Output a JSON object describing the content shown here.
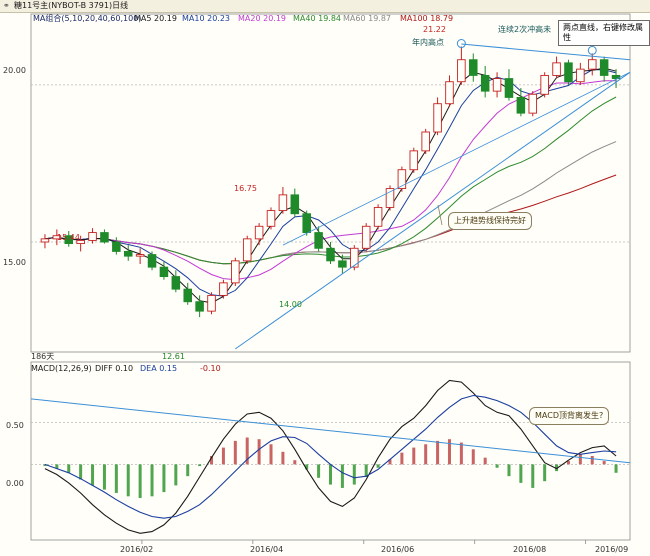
{
  "title": {
    "icon": "chart-icon",
    "text": "糖11号主(NYBOT-B 3791)日线"
  },
  "ma_legend": {
    "group": "MA组合(5,10,20,40,60,100)",
    "items": [
      {
        "label": "MA5 20.19",
        "color": "#1a1a1a"
      },
      {
        "label": "MA10 20.23",
        "color": "#1c3fa0"
      },
      {
        "label": "MA20 20.19",
        "color": "#c23bd4"
      },
      {
        "label": "MA40 19.84",
        "color": "#2e8b2e"
      },
      {
        "label": "MA60 19.87",
        "color": "#8a8a8a"
      },
      {
        "label": "MA100 18.79",
        "color": "#b01818"
      }
    ]
  },
  "tooltip": "两点直线，右键修改属性",
  "annotations": {
    "high_value": "21.22",
    "year_high": "年内高点",
    "new_high": "连续2次冲高未",
    "uptrend": "上升趋势线保持完好",
    "macd_divergence": "MACD顶背离发生?"
  },
  "price_labels": {
    "p1544": "15.44",
    "p1675": "16.75",
    "p1400": "14.00",
    "p1261": "12.61"
  },
  "bar_count": "186天",
  "macd_legend": {
    "name": "MACD(12,26,9)",
    "diff": "DIFF  0.10",
    "dea": "DEA  0.15",
    "macd": "-0.10"
  },
  "chart_data": [
    {
      "type": "candlestick",
      "title": "糖11号主(NYBOT-B 3791)日线",
      "y_ticks": [
        "20.00",
        "15.00"
      ],
      "ylim": [
        11.5,
        22.0
      ],
      "x_ticks": [
        "2016/02",
        "2016/04",
        "2016/06",
        "2016/08",
        "2016/09"
      ],
      "colors": {
        "up": "#c62222",
        "down": "#1f8a2a"
      },
      "series": [
        {
          "ohlc": [
            [
              15.0,
              15.25,
              14.8,
              15.1
            ],
            [
              15.1,
              15.4,
              14.9,
              15.2
            ],
            [
              15.2,
              15.35,
              14.85,
              14.95
            ],
            [
              14.95,
              15.2,
              14.7,
              15.05
            ],
            [
              15.05,
              15.44,
              14.95,
              15.3
            ],
            [
              15.3,
              15.4,
              14.95,
              15.0
            ],
            [
              15.0,
              15.15,
              14.6,
              14.7
            ],
            [
              14.7,
              14.9,
              14.4,
              14.55
            ],
            [
              14.55,
              14.8,
              14.3,
              14.6
            ],
            [
              14.6,
              14.7,
              14.1,
              14.2
            ],
            [
              14.2,
              14.4,
              13.8,
              13.9
            ],
            [
              13.9,
              14.1,
              13.4,
              13.5
            ],
            [
              13.5,
              13.7,
              13.0,
              13.1
            ],
            [
              13.1,
              13.3,
              12.61,
              12.8
            ],
            [
              12.8,
              13.4,
              12.7,
              13.3
            ],
            [
              13.3,
              13.8,
              13.2,
              13.7
            ],
            [
              13.7,
              14.5,
              13.6,
              14.4
            ],
            [
              14.4,
              15.2,
              14.3,
              15.1
            ],
            [
              15.1,
              15.6,
              14.9,
              15.5
            ],
            [
              15.5,
              16.1,
              15.4,
              16.0
            ],
            [
              16.0,
              16.75,
              15.9,
              16.5
            ],
            [
              16.5,
              16.7,
              15.8,
              15.9
            ],
            [
              15.9,
              16.0,
              15.2,
              15.3
            ],
            [
              15.3,
              15.5,
              14.7,
              14.8
            ],
            [
              14.8,
              15.0,
              14.3,
              14.4
            ],
            [
              14.4,
              14.6,
              14.0,
              14.2
            ],
            [
              14.2,
              14.9,
              14.1,
              14.8
            ],
            [
              14.8,
              15.6,
              14.7,
              15.5
            ],
            [
              15.5,
              16.2,
              15.4,
              16.1
            ],
            [
              16.1,
              16.8,
              16.0,
              16.7
            ],
            [
              16.7,
              17.4,
              16.6,
              17.3
            ],
            [
              17.3,
              18.0,
              17.2,
              17.9
            ],
            [
              17.9,
              18.6,
              17.8,
              18.5
            ],
            [
              18.5,
              19.6,
              18.4,
              19.4
            ],
            [
              19.4,
              20.3,
              19.3,
              20.1
            ],
            [
              20.1,
              21.22,
              20.0,
              20.8
            ],
            [
              20.8,
              21.0,
              20.1,
              20.3
            ],
            [
              20.3,
              20.6,
              19.6,
              19.8
            ],
            [
              19.8,
              20.4,
              19.6,
              20.2
            ],
            [
              20.2,
              20.5,
              19.5,
              19.6
            ],
            [
              19.6,
              19.9,
              19.0,
              19.1
            ],
            [
              19.1,
              19.8,
              19.0,
              19.7
            ],
            [
              19.7,
              20.4,
              19.6,
              20.3
            ],
            [
              20.3,
              20.9,
              20.2,
              20.7
            ],
            [
              20.7,
              20.8,
              20.0,
              20.1
            ],
            [
              20.1,
              20.7,
              20.0,
              20.5
            ],
            [
              20.5,
              21.0,
              20.3,
              20.8
            ],
            [
              20.8,
              20.9,
              20.1,
              20.3
            ],
            [
              20.3,
              20.5,
              19.9,
              20.2
            ]
          ]
        }
      ]
    },
    {
      "type": "bar",
      "title": "MACD(12,26,9)",
      "y_ticks": [
        "0.50",
        "0.00"
      ],
      "ylim": [
        -0.9,
        1.1
      ],
      "series": [
        {
          "name": "MACD",
          "values": [
            -0.02,
            -0.05,
            -0.1,
            -0.18,
            -0.25,
            -0.3,
            -0.34,
            -0.38,
            -0.4,
            -0.38,
            -0.33,
            -0.25,
            -0.14,
            -0.02,
            0.1,
            0.2,
            0.28,
            0.32,
            0.3,
            0.24,
            0.15,
            0.05,
            -0.06,
            -0.16,
            -0.24,
            -0.28,
            -0.24,
            -0.15,
            -0.04,
            0.06,
            0.14,
            0.2,
            0.24,
            0.28,
            0.3,
            0.26,
            0.18,
            0.08,
            -0.04,
            -0.14,
            -0.22,
            -0.28,
            -0.2,
            -0.08,
            0.04,
            0.12,
            0.1,
            0.04,
            -0.1
          ]
        },
        {
          "name": "DIFF",
          "values": [
            -0.05,
            -0.12,
            -0.22,
            -0.34,
            -0.48,
            -0.6,
            -0.7,
            -0.78,
            -0.82,
            -0.8,
            -0.72,
            -0.58,
            -0.38,
            -0.15,
            0.08,
            0.3,
            0.48,
            0.6,
            0.62,
            0.55,
            0.4,
            0.18,
            -0.06,
            -0.28,
            -0.44,
            -0.5,
            -0.4,
            -0.18,
            0.08,
            0.3,
            0.45,
            0.55,
            0.7,
            0.88,
            1.0,
            0.98,
            0.85,
            0.7,
            0.62,
            0.58,
            0.42,
            0.22,
            0.02,
            -0.05,
            0.05,
            0.14,
            0.2,
            0.22,
            0.1
          ]
        },
        {
          "name": "DEA",
          "values": [
            0.0,
            -0.05,
            -0.1,
            -0.17,
            -0.25,
            -0.33,
            -0.42,
            -0.5,
            -0.57,
            -0.62,
            -0.64,
            -0.62,
            -0.56,
            -0.48,
            -0.36,
            -0.22,
            -0.08,
            0.06,
            0.18,
            0.28,
            0.33,
            0.32,
            0.25,
            0.12,
            0.0,
            -0.1,
            -0.16,
            -0.14,
            -0.06,
            0.06,
            0.18,
            0.3,
            0.42,
            0.56,
            0.68,
            0.78,
            0.82,
            0.8,
            0.76,
            0.7,
            0.62,
            0.5,
            0.36,
            0.22,
            0.14,
            0.12,
            0.14,
            0.16,
            0.15
          ]
        }
      ]
    }
  ]
}
